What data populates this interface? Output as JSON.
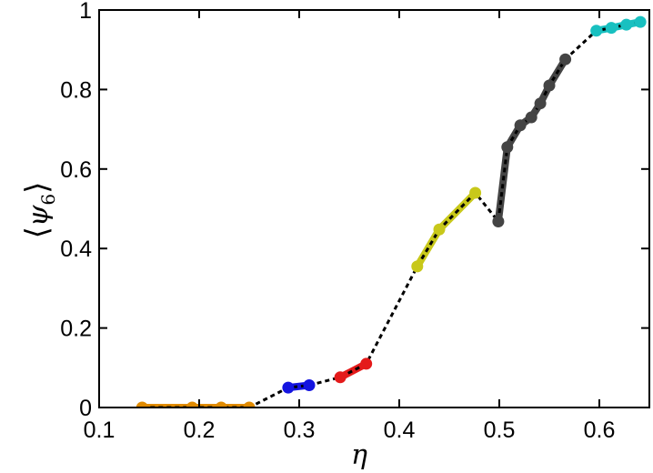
{
  "chart_data": {
    "type": "scatter",
    "xlabel": "η",
    "ylabel": "⟨ψ6⟩",
    "ylabel_main": "ψ",
    "ylabel_sub": "6",
    "xlim": [
      0.1,
      0.65
    ],
    "ylim": [
      0,
      1
    ],
    "x_ticks": [
      0.1,
      0.2,
      0.3,
      0.4,
      0.5,
      0.6
    ],
    "x_tick_labels": [
      "0.1",
      "0.2",
      "0.3",
      "0.4",
      "0.5",
      "0.6"
    ],
    "y_ticks": [
      0,
      0.2,
      0.4,
      0.6,
      0.8,
      1
    ],
    "y_tick_labels": [
      "0",
      "0.2",
      "0.4",
      "0.6",
      "0.8",
      "1"
    ],
    "grid": false,
    "connector": {
      "style": "dashed",
      "color": "#000000"
    },
    "series": [
      {
        "color": "#e08a00",
        "x": [
          0.143,
          0.193,
          0.222,
          0.25
        ],
        "y": [
          0.0,
          0.0,
          0.0,
          0.0
        ]
      },
      {
        "color": "#1414e0",
        "x": [
          0.289,
          0.31
        ],
        "y": [
          0.05,
          0.056
        ]
      },
      {
        "color": "#e41a1a",
        "x": [
          0.341,
          0.367
        ],
        "y": [
          0.076,
          0.11
        ]
      },
      {
        "color": "#c8c81a",
        "x": [
          0.418,
          0.44,
          0.476
        ],
        "y": [
          0.355,
          0.448,
          0.54
        ]
      },
      {
        "color": "#444444",
        "x": [
          0.499,
          0.508,
          0.521,
          0.532,
          0.541,
          0.55,
          0.566
        ],
        "y": [
          0.468,
          0.655,
          0.71,
          0.73,
          0.765,
          0.81,
          0.876
        ]
      },
      {
        "color": "#18c0c0",
        "x": [
          0.597,
          0.612,
          0.627,
          0.641
        ],
        "y": [
          0.948,
          0.955,
          0.963,
          0.97
        ]
      }
    ]
  }
}
